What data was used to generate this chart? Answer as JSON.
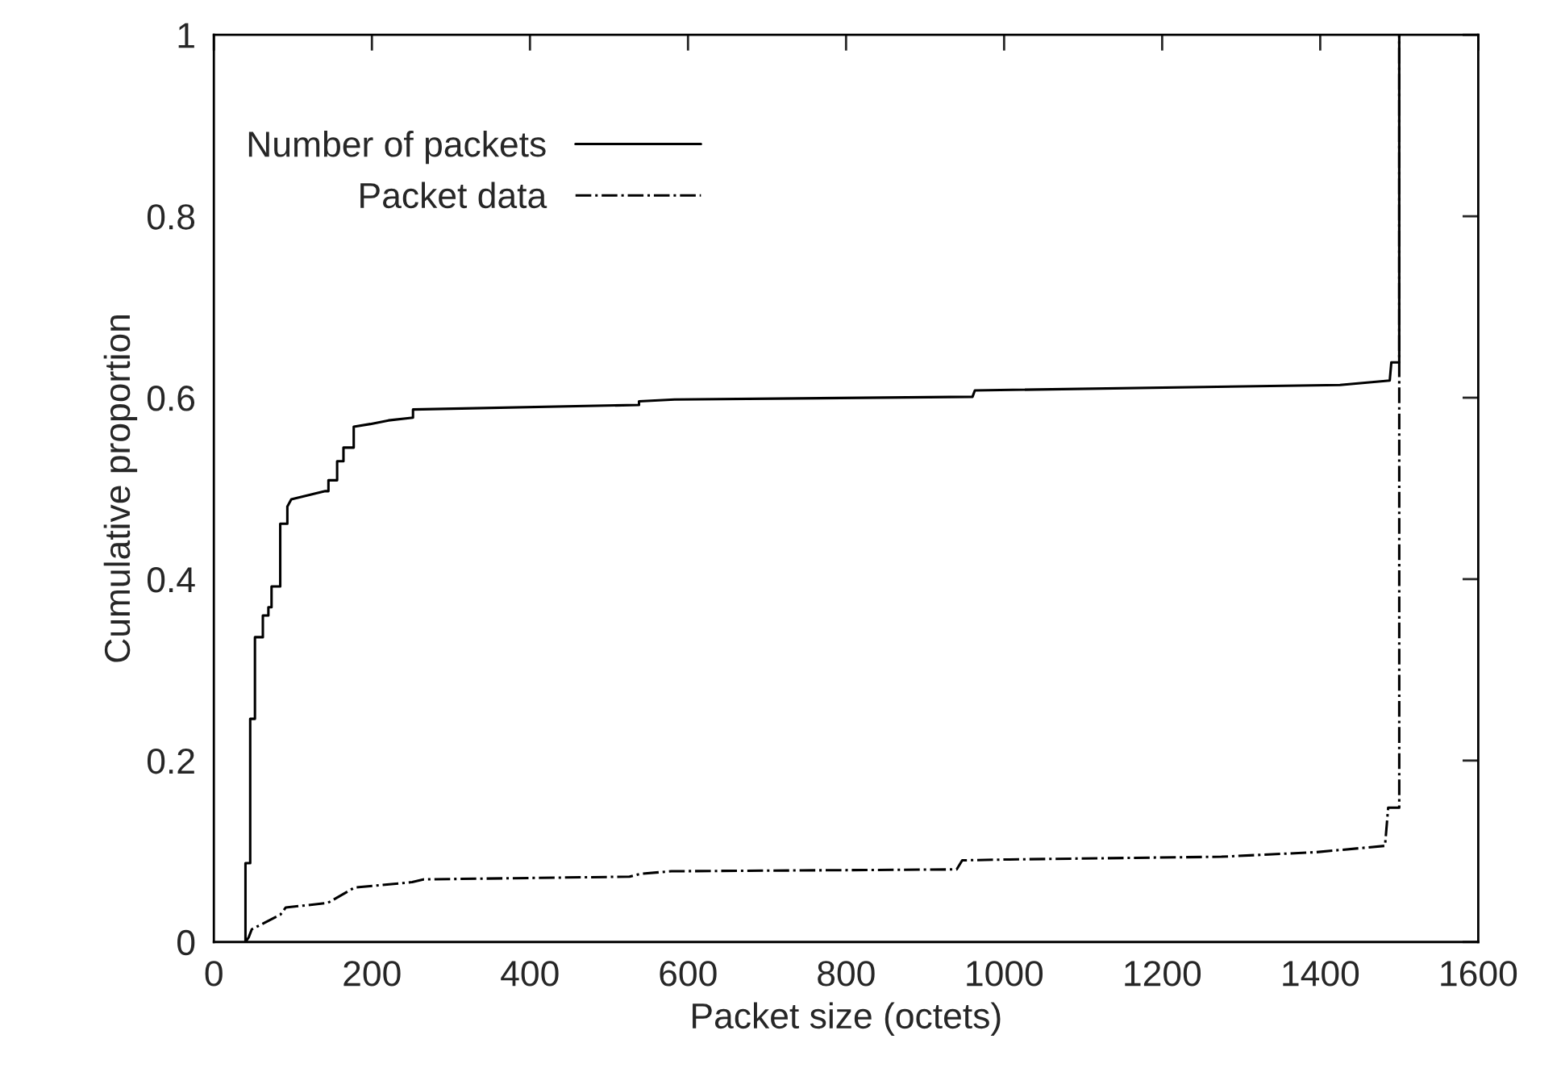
{
  "chart_data": {
    "type": "line",
    "xlabel": "Packet size (octets)",
    "ylabel": "Cumulative proportion",
    "xlim": [
      0,
      1600
    ],
    "xticks": [
      0,
      200,
      400,
      600,
      800,
      1000,
      1200,
      1400,
      1600
    ],
    "ylim": [
      0,
      1
    ],
    "yticks": [
      0,
      0.2,
      0.4,
      0.6,
      0.8,
      1
    ],
    "grid": false,
    "legend": "top left",
    "marker": "none",
    "series": [
      {
        "name": "Number of packets",
        "color": "#000000",
        "line_style": "solid",
        "x": [
          40,
          40,
          46,
          46,
          52,
          52,
          62,
          62,
          69,
          69,
          73,
          73,
          84,
          84,
          93,
          93,
          98,
          141,
          145,
          145,
          156,
          156,
          164,
          164,
          177,
          177,
          198,
          221,
          252,
          252,
          538,
          538,
          583,
          960,
          963,
          1425,
          1488,
          1490,
          1500,
          1500
        ],
        "values": [
          0,
          0.087,
          0.087,
          0.246,
          0.246,
          0.336,
          0.336,
          0.36,
          0.36,
          0.369,
          0.369,
          0.392,
          0.392,
          0.461,
          0.461,
          0.48,
          0.488,
          0.497,
          0.497,
          0.509,
          0.509,
          0.53,
          0.53,
          0.545,
          0.545,
          0.568,
          0.571,
          0.575,
          0.578,
          0.587,
          0.592,
          0.596,
          0.598,
          0.601,
          0.608,
          0.614,
          0.619,
          0.639,
          0.639,
          1
        ]
      },
      {
        "name": "Packet data",
        "color": "#000000",
        "line_style": "dashdot",
        "x": [
          40,
          44,
          48,
          84,
          91,
          144,
          178,
          251,
          265,
          526,
          539,
          579,
          940,
          947,
          1007,
          1275,
          1395,
          1482,
          1486,
          1500,
          1500
        ],
        "values": [
          0,
          0.005,
          0.014,
          0.03,
          0.038,
          0.043,
          0.06,
          0.066,
          0.069,
          0.072,
          0.075,
          0.078,
          0.08,
          0.09,
          0.091,
          0.094,
          0.099,
          0.106,
          0.148,
          0.148,
          1
        ]
      }
    ]
  }
}
